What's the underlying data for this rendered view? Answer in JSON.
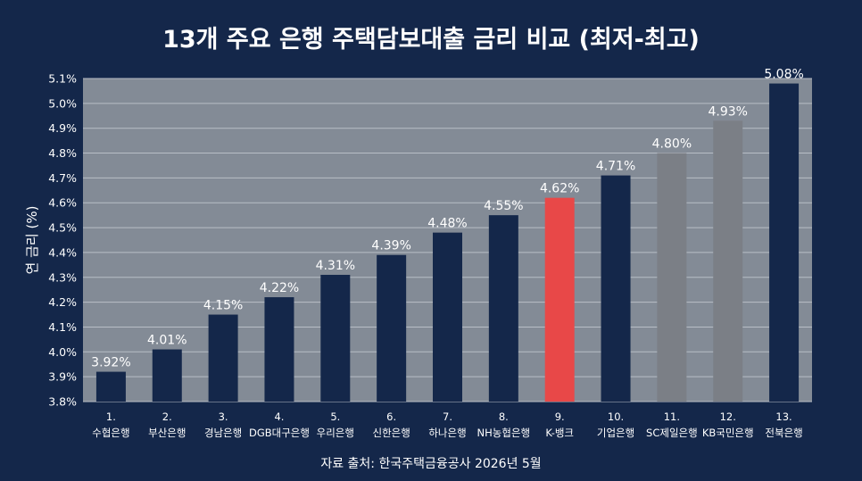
{
  "colors": {
    "background": "#14274a",
    "plot_background": "#838b96",
    "bar_default": "#14274a",
    "bar_highlight": "#e84848",
    "bar_muted": "#7b7f86",
    "gridline": "#b8bec6"
  },
  "source_text": "자료 출처: 한국주택금융공사 2026년 5월",
  "chart_data": {
    "type": "bar",
    "title": "13개 주요 은행 주택담보대출 금리 비교 (최저-최고)",
    "xlabel": "",
    "ylabel": "연 금리 (%)",
    "ylim": [
      3.8,
      5.1
    ],
    "yticks": [
      "3.8%",
      "3.9%",
      "4.0%",
      "4.1%",
      "4.2%",
      "4.3%",
      "4.4%",
      "4.5%",
      "4.6%",
      "4.7%",
      "4.8%",
      "4.9%",
      "5.0%",
      "5.1%"
    ],
    "grid": true,
    "categories": [
      [
        "1.",
        "수협은행"
      ],
      [
        "2.",
        "부산은행"
      ],
      [
        "3.",
        "경남은행"
      ],
      [
        "4.",
        "DGB대구은행"
      ],
      [
        "5.",
        "우리은행"
      ],
      [
        "6.",
        "신한은행"
      ],
      [
        "7.",
        "하나은행"
      ],
      [
        "8.",
        "NH농협은행"
      ],
      [
        "9.",
        "K-뱅크"
      ],
      [
        "10.",
        "기업은행"
      ],
      [
        "11.",
        "SC제일은행"
      ],
      [
        "12.",
        "KB국민은행"
      ],
      [
        "13.",
        "전북은행"
      ]
    ],
    "values": [
      3.92,
      4.01,
      4.15,
      4.22,
      4.31,
      4.39,
      4.48,
      4.55,
      4.62,
      4.71,
      4.8,
      4.93,
      5.08
    ],
    "data_labels": [
      "3.92%",
      "4.01%",
      "4.15%",
      "4.22%",
      "4.31%",
      "4.39%",
      "4.48%",
      "4.55%",
      "4.62%",
      "4.71%",
      "4.80%",
      "4.93%",
      "5.08%"
    ],
    "bar_colors": [
      "default",
      "default",
      "default",
      "default",
      "default",
      "default",
      "default",
      "default",
      "highlight",
      "default",
      "muted",
      "muted",
      "default"
    ]
  }
}
